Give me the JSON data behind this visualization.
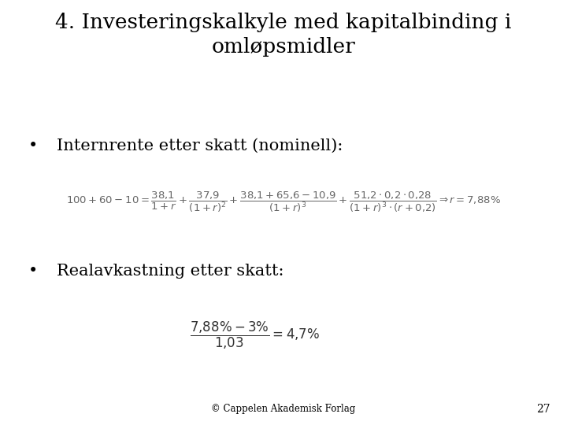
{
  "title_line1": "4. Investeringskalkyle med kapitalbinding i",
  "title_line2": "omløpsmidler",
  "bullet1": "Internrente etter skatt (nominell):",
  "bullet2": "Realavkastning etter skatt:",
  "footer": "© Cappelen Akademisk Forlag",
  "page_number": "27",
  "bg_color": "#ffffff",
  "text_color": "#000000",
  "formula1_color": "#666666",
  "formula2_color": "#333333",
  "title_fontsize": 19,
  "bullet_fontsize": 15,
  "formula1_fontsize": 9.5,
  "formula2_fontsize": 12,
  "footer_fontsize": 8.5,
  "page_fontsize": 10
}
